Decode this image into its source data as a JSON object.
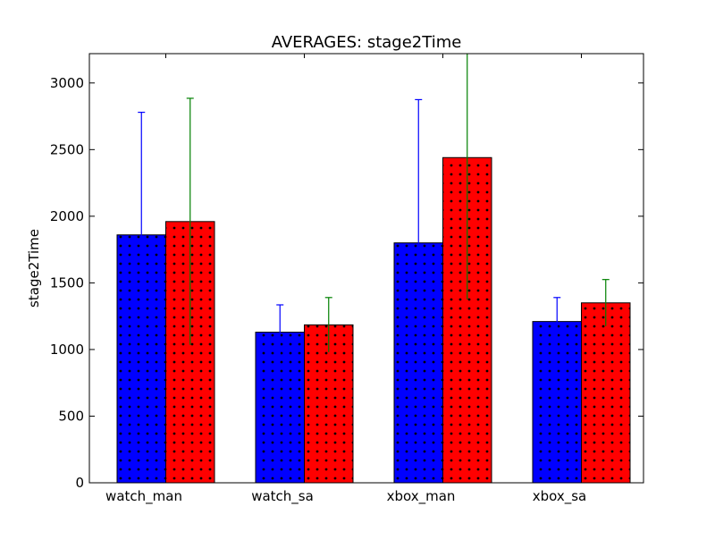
{
  "chart_data": {
    "type": "bar",
    "title": "AVERAGES: stage2Time",
    "xlabel": "",
    "ylabel": "stage2Time",
    "categories": [
      "watch_man",
      "watch_sa",
      "xbox_man",
      "xbox_sa"
    ],
    "ylim": [
      0,
      3220
    ],
    "yticks": [
      0,
      500,
      1000,
      1500,
      2000,
      2500,
      3000
    ],
    "grid": false,
    "legend": "none",
    "hatch": "dots",
    "series": [
      {
        "color": "#0000ff",
        "error_color": "#0000ff",
        "values": [
          1860,
          1130,
          1800,
          1210
        ],
        "errors": [
          920,
          205,
          1075,
          180
        ]
      },
      {
        "color": "#ff0000",
        "error_color": "#008000",
        "values": [
          1960,
          1185,
          2440,
          1350
        ],
        "errors": [
          925,
          205,
          1065,
          175
        ]
      }
    ]
  }
}
